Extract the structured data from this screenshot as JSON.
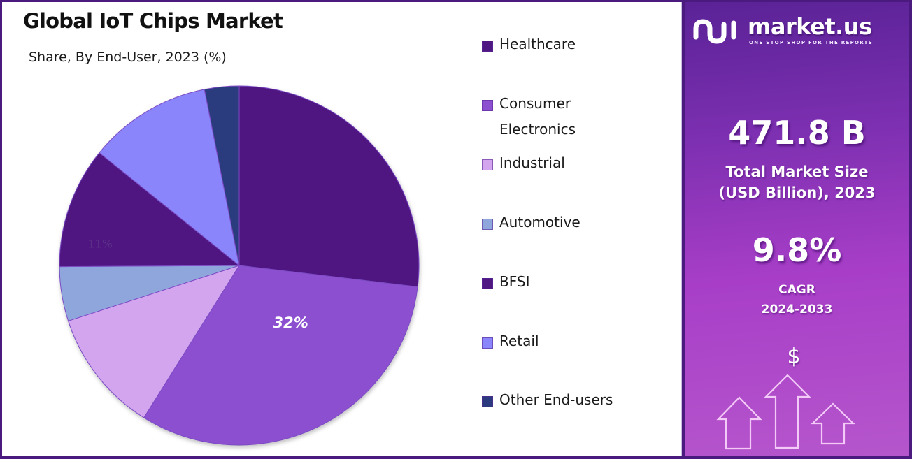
{
  "header": {
    "title": "Global IoT Chips Market",
    "subtitle": "Share, By End-User, 2023 (%)"
  },
  "chart_data": {
    "type": "pie",
    "title": "Global IoT Chips Market",
    "subtitle": "Share, By End-User, 2023 (%)",
    "start_angle": "12 o'clock, clockwise",
    "legend_position": "right",
    "slices": [
      {
        "name": "Healthcare",
        "value": 26.9,
        "color": "#4f1782",
        "label": ""
      },
      {
        "name": "Consumer Electronics",
        "value": 32.0,
        "color": "#8b4fd0",
        "label": "32%"
      },
      {
        "name": "Industrial",
        "value": 11.1,
        "color": "#d3a5ee",
        "label": ""
      },
      {
        "name": "Automotive",
        "value": 4.9,
        "color": "#8fa6dc",
        "label": ""
      },
      {
        "name": "BFSI",
        "value": 10.9,
        "color": "#4f1782",
        "label": "11%"
      },
      {
        "name": "Retail",
        "value": 11.1,
        "color": "#8a85fa",
        "label": ""
      },
      {
        "name": "Other End-users",
        "value": 3.1,
        "color": "#2b3a7e",
        "label": ""
      }
    ]
  },
  "legend": {
    "items": [
      {
        "label": "Healthcare",
        "color": "#4f1782"
      },
      {
        "label": "Consumer Electronics",
        "color": "#8b4fd0"
      },
      {
        "label": "Industrial",
        "color": "#d3a5ee"
      },
      {
        "label": "Automotive",
        "color": "#8fa6dc"
      },
      {
        "label": "BFSI",
        "color": "#4f1782"
      },
      {
        "label": "Retail",
        "color": "#8a85fa"
      },
      {
        "label": "Other End-users",
        "color": "#2b3a7e"
      }
    ]
  },
  "sidebar": {
    "brand": "market.us",
    "tagline": "ONE STOP SHOP FOR THE REPORTS",
    "logo_icon": "market-us-logo-icon",
    "market_size_value": "471.8 B",
    "market_size_label": "Total Market Size (USD Billion), 2023",
    "cagr_value": "9.8%",
    "cagr_label": "CAGR",
    "cagr_period": "2024-2033",
    "growth_icon": "dollar-growth-arrows-icon",
    "dollar_symbol": "$"
  },
  "colors": {
    "frame": "#4a1a7e",
    "panel_gradient_top": "#5a2296",
    "panel_gradient_bottom": "#b556cc"
  }
}
